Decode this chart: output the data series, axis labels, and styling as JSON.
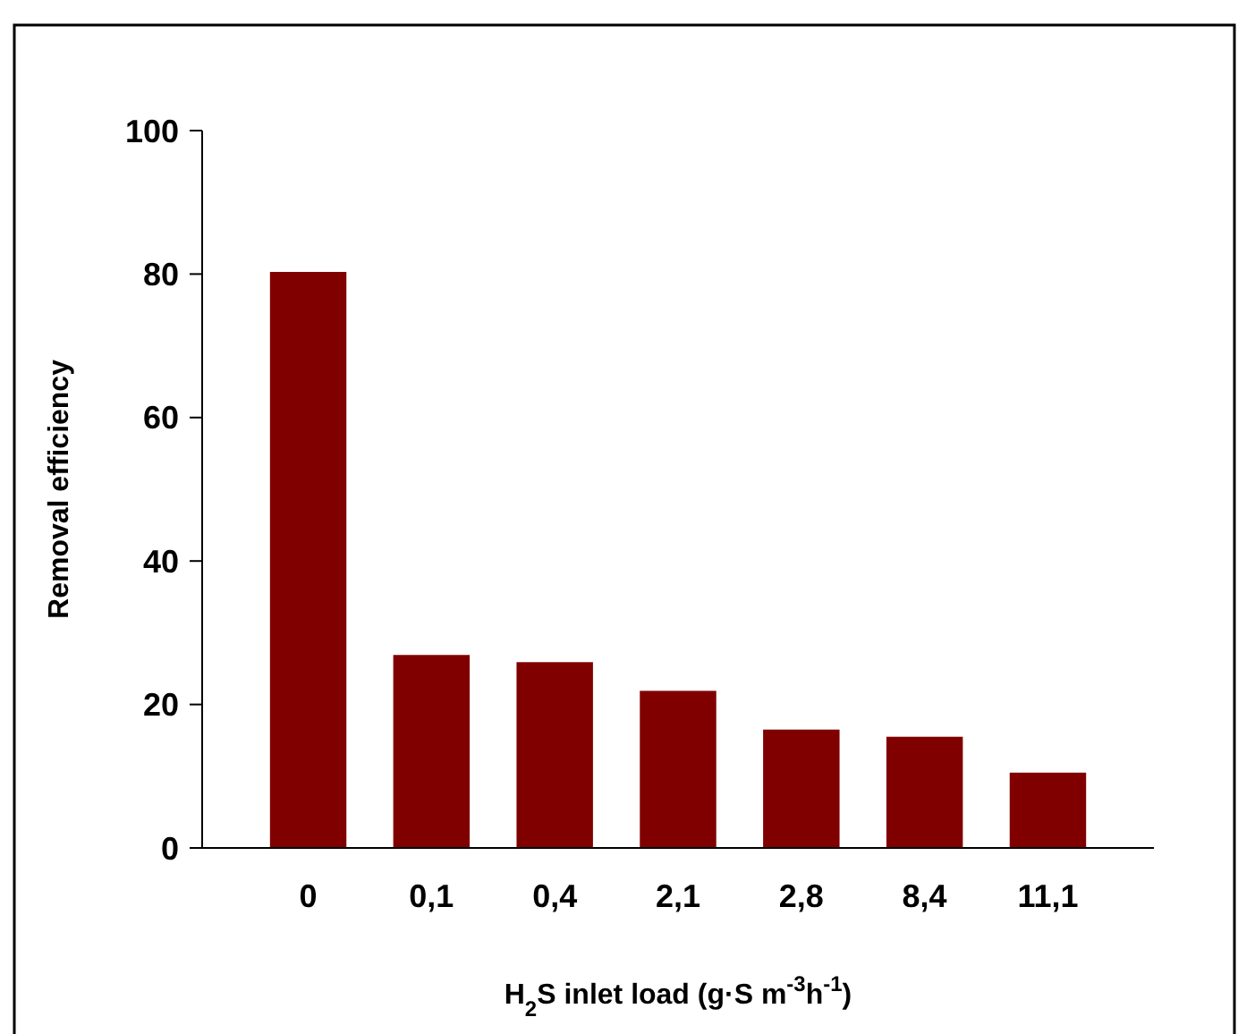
{
  "chart_data": {
    "type": "bar",
    "xlabel": "H$_{2}$S inlet load (g·S m$^{-3}$h$^{-1}$)",
    "ylabel": "Removal efficiency",
    "categories": [
      "0",
      "0,1",
      "0,4",
      "2,1",
      "2,8",
      "8,4",
      "11,1"
    ],
    "values": [
      80.3,
      26.9,
      25.9,
      21.9,
      16.5,
      15.5,
      10.5
    ],
    "color": "#800000",
    "ylim": [
      0,
      100
    ],
    "yticks": [
      0,
      20,
      40,
      60,
      80,
      100
    ],
    "grid": false
  }
}
